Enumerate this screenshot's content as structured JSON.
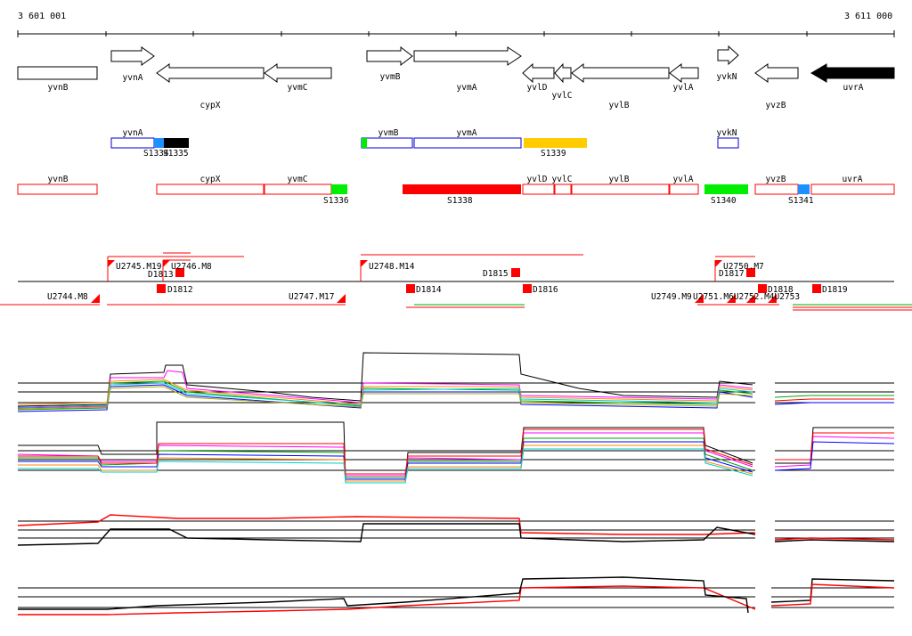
{
  "coordinates": {
    "start": "3 601 001",
    "end": "3 611 000"
  },
  "colors": {
    "red": "#ff0000",
    "blue": "#0000cc",
    "green": "#00ee00",
    "sky": "#1e90ff",
    "orange": "#ffcc00",
    "black": "#000000"
  },
  "genes": [
    {
      "label": "yvnB",
      "dir": "none"
    },
    {
      "label": "yvnA",
      "dir": "right"
    },
    {
      "label": "cypX",
      "dir": "left"
    },
    {
      "label": "yvmC",
      "dir": "left"
    },
    {
      "label": "yvmB",
      "dir": "right"
    },
    {
      "label": "yvmA",
      "dir": "right"
    },
    {
      "label": "yvlD",
      "dir": "left"
    },
    {
      "label": "yvlC",
      "dir": "left"
    },
    {
      "label": "yvlB",
      "dir": "left"
    },
    {
      "label": "yvlA",
      "dir": "left"
    },
    {
      "label": "yvkN",
      "dir": "right"
    },
    {
      "label": "yvzB",
      "dir": "left"
    },
    {
      "label": "uvrA",
      "dir": "left",
      "filled": true
    }
  ],
  "upper_transcripts": {
    "boxes": [
      "yvnA",
      "yvmB",
      "yvmA",
      "yvkN"
    ],
    "segments": [
      {
        "label": "S1334",
        "color": "sky"
      },
      {
        "label": "S1335",
        "color": "black"
      },
      {
        "label": "S1339",
        "color": "orange"
      }
    ]
  },
  "lower_transcripts": {
    "boxes": [
      "yvnB",
      "cypX",
      "yvmC",
      "yvlD",
      "yvlC",
      "yvlB",
      "yvlA",
      "yvzB",
      "uvrA"
    ],
    "segments": [
      {
        "label": "S1336",
        "color": "green"
      },
      {
        "label": "S1338",
        "color": "red"
      },
      {
        "label": "S1340",
        "color": "green"
      },
      {
        "label": "S1341",
        "color": "sky"
      }
    ]
  },
  "upshifts": [
    "U2745.M19",
    "U2746.M8",
    "U2748.M14",
    "U2750.M7",
    "U2744.M8",
    "U2747.M17",
    "U2749.M9"
  ],
  "downshifts": [
    "D1813",
    "D1815",
    "D1817",
    "D1812",
    "D1814",
    "D1816",
    "D1818",
    "D1819"
  ],
  "overlap_text": "U2751.M6U2752.M4U2753"
}
